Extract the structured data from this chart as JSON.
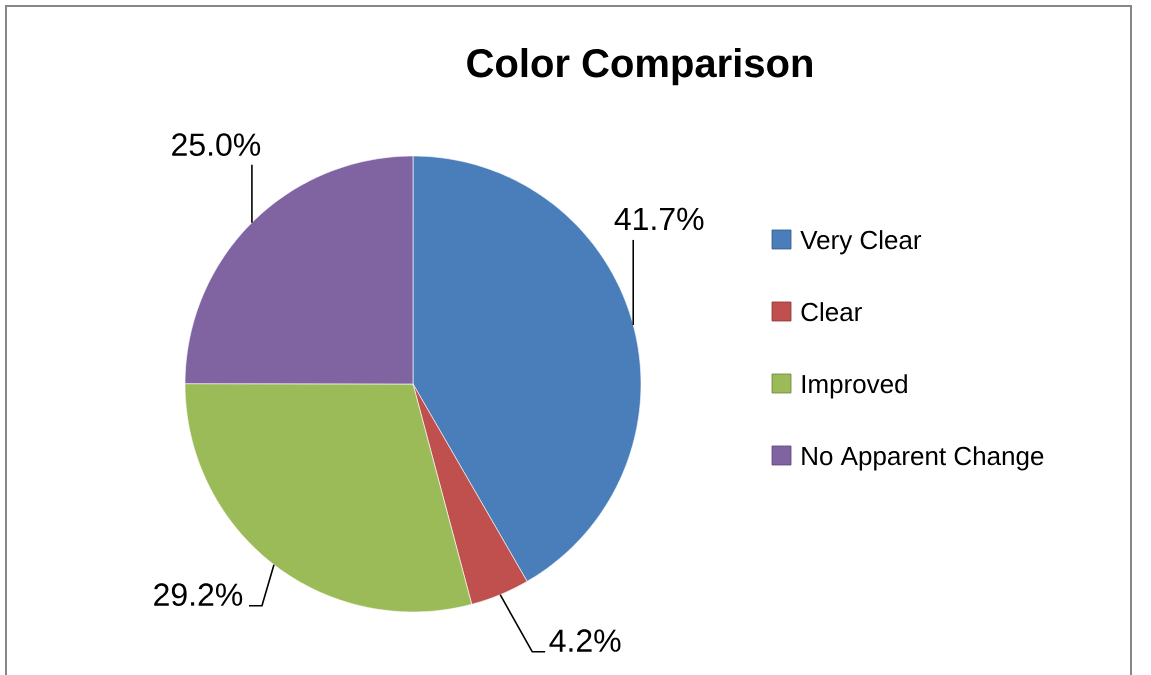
{
  "chart_data": {
    "type": "pie",
    "title": "Color Comparison",
    "categories": [
      "Very Clear",
      "Clear",
      "Improved",
      "No Apparent Change"
    ],
    "values": [
      41.7,
      4.2,
      29.2,
      25.0
    ],
    "colors": [
      "#4A7EBB",
      "#C0504D",
      "#9BBB59",
      "#8064A2"
    ],
    "value_labels": [
      "41.7%",
      "4.2%",
      "29.2%",
      "25.0%"
    ],
    "legend": "right"
  }
}
